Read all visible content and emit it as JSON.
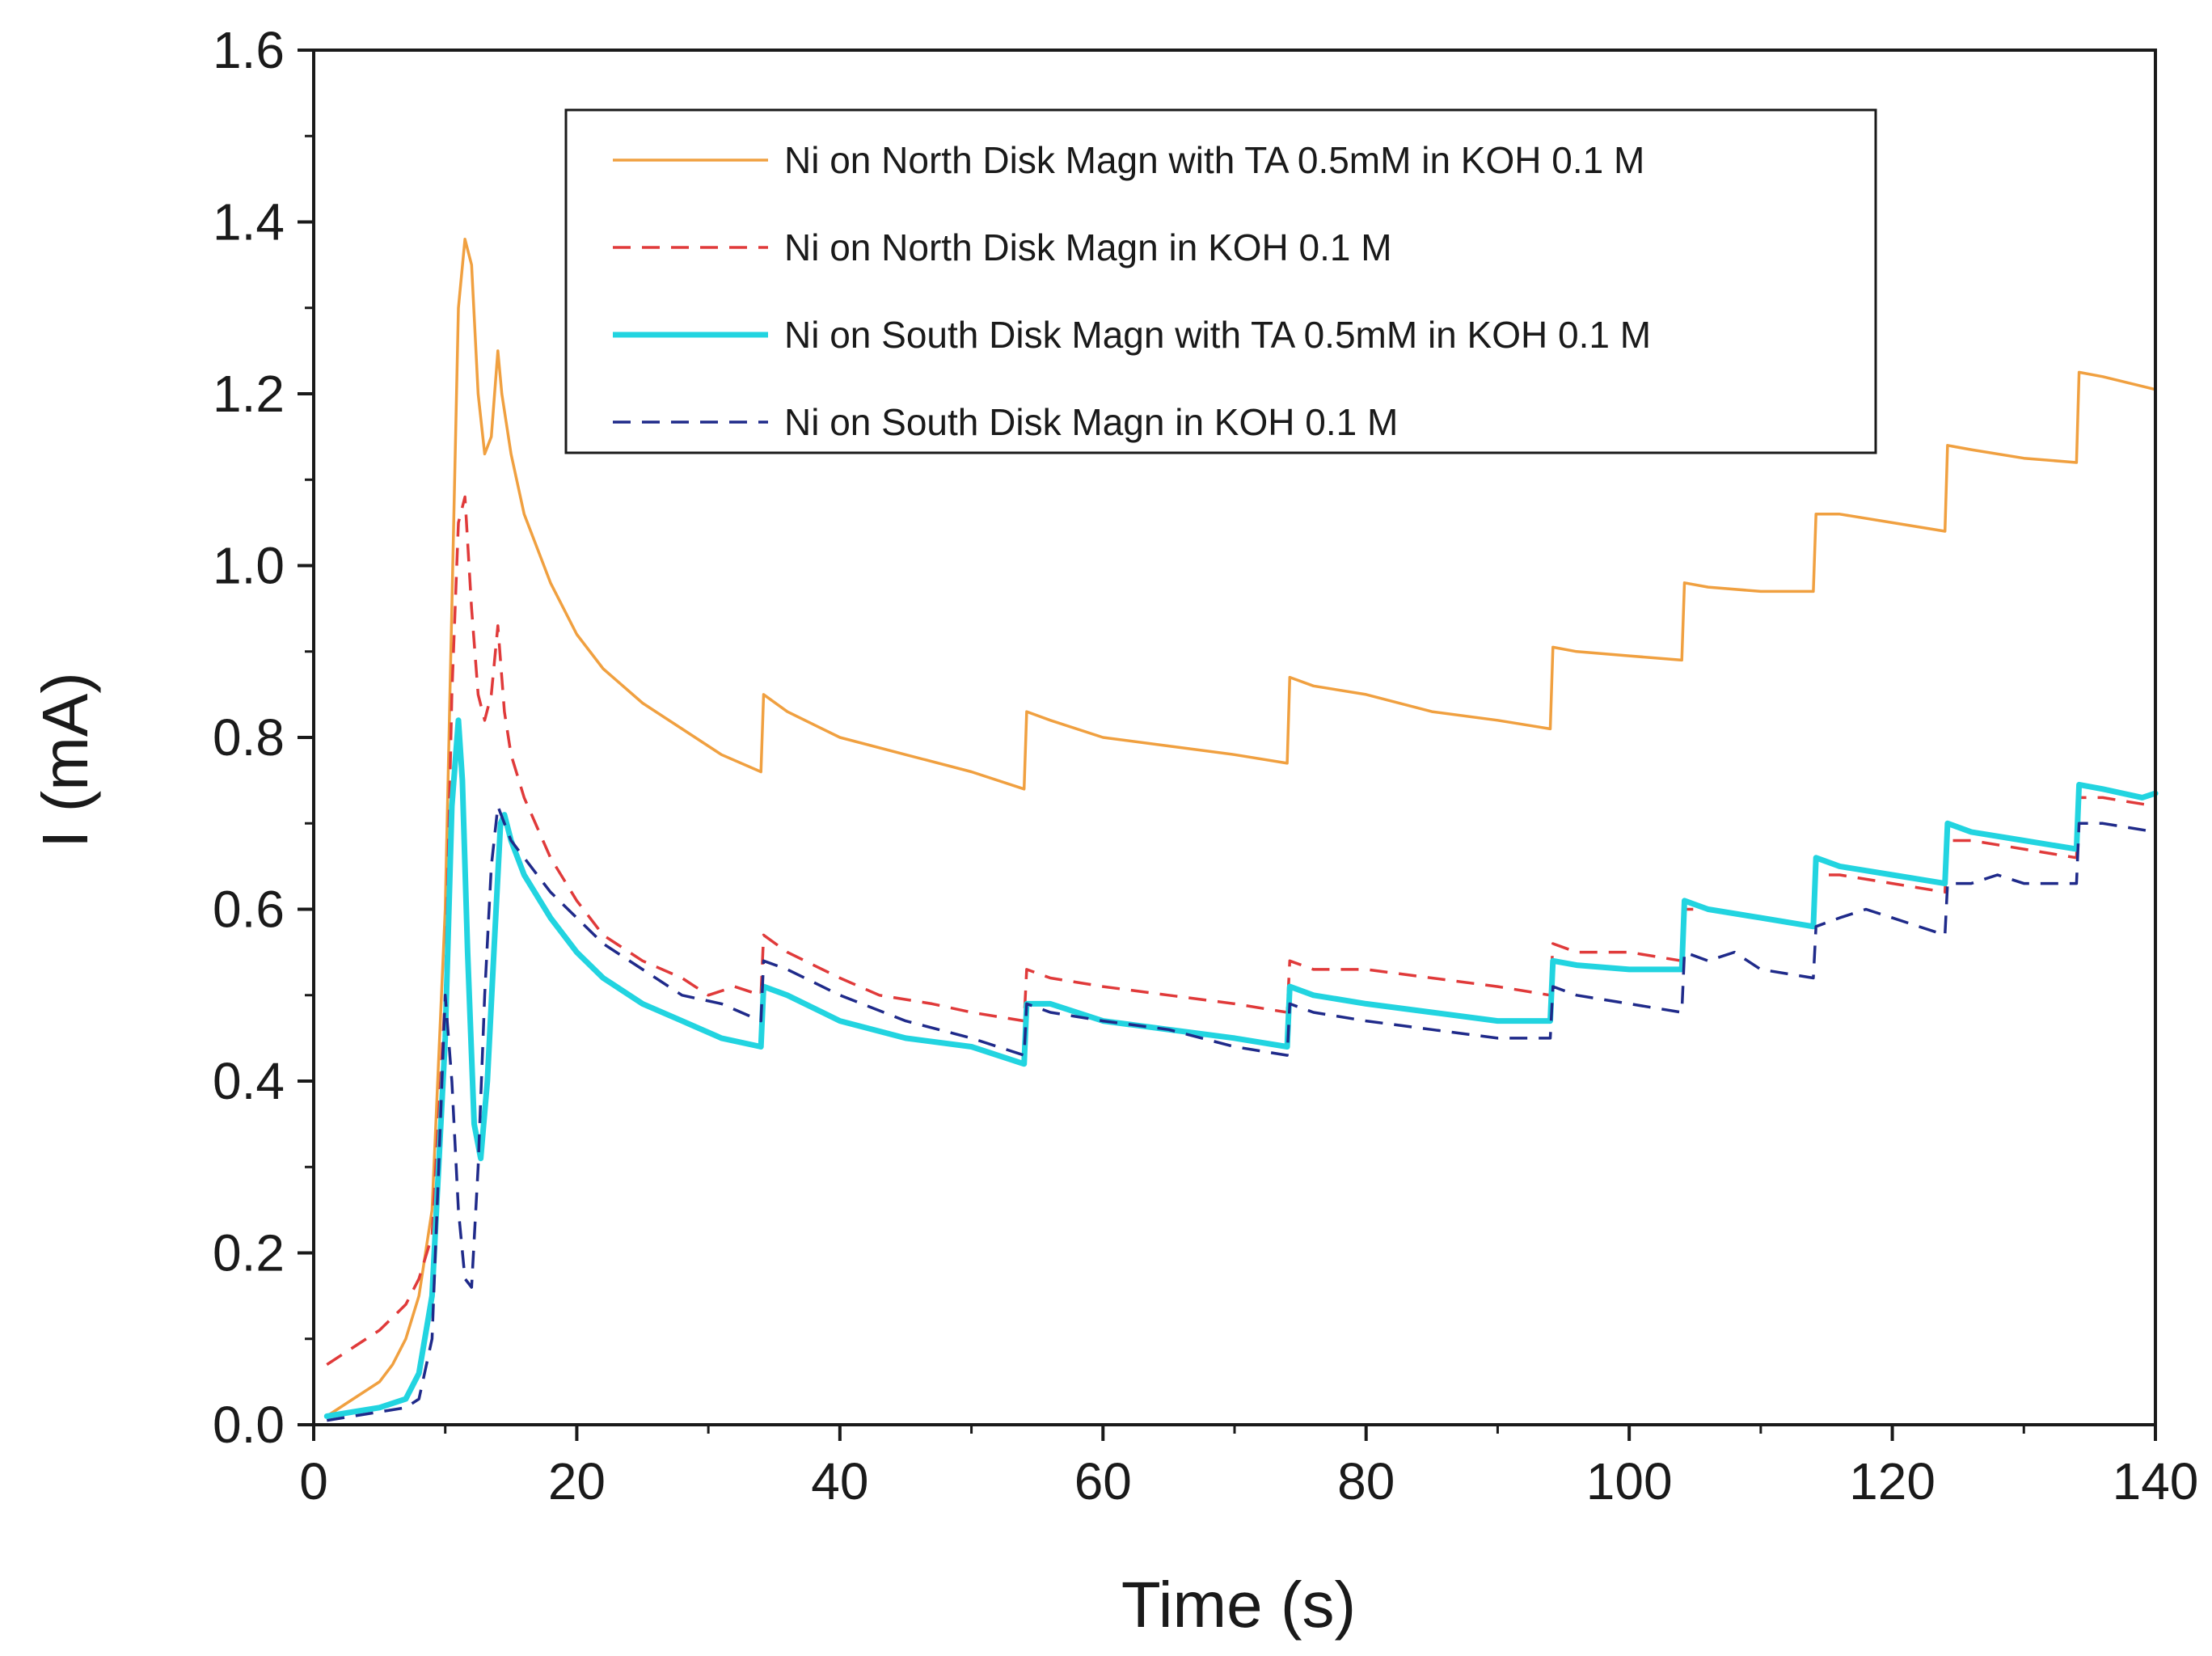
{
  "chart_data": {
    "type": "line",
    "title": "",
    "xlabel": "Time (s)",
    "ylabel": "I (mA)",
    "xlim": [
      0,
      140
    ],
    "ylim": [
      0.0,
      1.6
    ],
    "grid": false,
    "legend_position": "top-right",
    "x_ticks": [
      {
        "value": 0,
        "label": "0"
      },
      {
        "value": 20,
        "label": "20"
      },
      {
        "value": 40,
        "label": "40"
      },
      {
        "value": 60,
        "label": "60"
      },
      {
        "value": 80,
        "label": "80"
      },
      {
        "value": 100,
        "label": "100"
      },
      {
        "value": 120,
        "label": "120"
      },
      {
        "value": 140,
        "label": "140"
      }
    ],
    "y_ticks": [
      {
        "value": 0.0,
        "label": "0.0"
      },
      {
        "value": 0.2,
        "label": "0.2"
      },
      {
        "value": 0.4,
        "label": "0.4"
      },
      {
        "value": 0.6,
        "label": "0.6"
      },
      {
        "value": 0.8,
        "label": "0.8"
      },
      {
        "value": 1.0,
        "label": "1.0"
      },
      {
        "value": 1.2,
        "label": "1.2"
      },
      {
        "value": 1.4,
        "label": "1.4"
      },
      {
        "value": 1.6,
        "label": "1.6"
      }
    ],
    "series": [
      {
        "name": "Ni on North Disk Magn with TA 0.5mM in KOH 0.1 M",
        "color": "#f0a040",
        "dash": "solid",
        "width": "thin",
        "x": [
          1,
          3,
          5,
          6,
          7,
          8,
          9,
          10,
          11,
          11.5,
          12,
          12.5,
          13,
          13.5,
          14,
          14.3,
          15,
          16,
          18,
          20,
          22,
          25,
          28,
          31,
          34,
          34.2,
          36,
          40,
          45,
          50,
          54,
          54.2,
          56,
          60,
          65,
          70,
          74,
          74.2,
          76,
          80,
          85,
          90,
          94,
          94.2,
          96,
          100,
          104,
          104.2,
          106,
          110,
          114,
          114.2,
          116,
          120,
          124,
          124.2,
          126,
          130,
          134,
          134.2,
          136,
          140
        ],
        "y": [
          0.01,
          0.03,
          0.05,
          0.07,
          0.1,
          0.15,
          0.25,
          0.6,
          1.3,
          1.38,
          1.35,
          1.2,
          1.13,
          1.15,
          1.25,
          1.2,
          1.13,
          1.06,
          0.98,
          0.92,
          0.88,
          0.84,
          0.81,
          0.78,
          0.76,
          0.85,
          0.83,
          0.8,
          0.78,
          0.76,
          0.74,
          0.83,
          0.82,
          0.8,
          0.79,
          0.78,
          0.77,
          0.87,
          0.86,
          0.85,
          0.83,
          0.82,
          0.81,
          0.905,
          0.9,
          0.895,
          0.89,
          0.98,
          0.975,
          0.97,
          0.97,
          1.06,
          1.06,
          1.05,
          1.04,
          1.14,
          1.135,
          1.125,
          1.12,
          1.225,
          1.22,
          1.205
        ]
      },
      {
        "name": "Ni on North Disk Magn in KOH 0.1 M",
        "color": "#e03a3a",
        "dash": "dashed",
        "width": "thin",
        "x": [
          1,
          3,
          5,
          7,
          8,
          9,
          10,
          10.5,
          11,
          11.5,
          12,
          12.5,
          13,
          13.5,
          14,
          14.5,
          15,
          16,
          18,
          20,
          22,
          25,
          28,
          30,
          32,
          34,
          34.2,
          36,
          40,
          43,
          47,
          50,
          54,
          54.2,
          56,
          60,
          65,
          70,
          74,
          74.2,
          76,
          80,
          85,
          90,
          94,
          94.2,
          96,
          100,
          104,
          104.2,
          106,
          110,
          114,
          114.2,
          116,
          120,
          124,
          124.2,
          126,
          130,
          134,
          134.2,
          136,
          140
        ],
        "y": [
          0.07,
          0.09,
          0.11,
          0.14,
          0.17,
          0.22,
          0.5,
          0.85,
          1.05,
          1.08,
          0.95,
          0.85,
          0.82,
          0.85,
          0.93,
          0.83,
          0.78,
          0.73,
          0.66,
          0.61,
          0.57,
          0.54,
          0.52,
          0.5,
          0.51,
          0.5,
          0.57,
          0.55,
          0.52,
          0.5,
          0.49,
          0.48,
          0.47,
          0.53,
          0.52,
          0.51,
          0.5,
          0.49,
          0.48,
          0.54,
          0.53,
          0.53,
          0.52,
          0.51,
          0.5,
          0.56,
          0.55,
          0.55,
          0.54,
          0.6,
          0.6,
          0.59,
          0.58,
          0.64,
          0.64,
          0.63,
          0.62,
          0.68,
          0.68,
          0.67,
          0.66,
          0.73,
          0.73,
          0.72
        ]
      },
      {
        "name": "Ni on South Disk Magn with TA 0.5mM in KOH 0.1 M",
        "color": "#22d4e0",
        "dash": "solid",
        "width": "thick",
        "x": [
          1,
          3,
          5,
          7,
          8,
          9,
          10,
          10.5,
          11,
          11.3,
          11.7,
          12.2,
          12.7,
          13.2,
          13.7,
          14.2,
          14.5,
          15,
          16,
          18,
          20,
          22,
          25,
          28,
          31,
          34,
          34.2,
          36,
          40,
          45,
          50,
          54,
          54.2,
          56,
          60,
          65,
          70,
          74,
          74.2,
          76,
          80,
          85,
          90,
          94,
          94.2,
          96,
          100,
          104,
          104.2,
          106,
          110,
          114,
          114.2,
          116,
          120,
          124,
          124.2,
          126,
          130,
          134,
          134.2,
          136,
          139,
          140
        ],
        "y": [
          0.01,
          0.015,
          0.02,
          0.03,
          0.06,
          0.15,
          0.45,
          0.72,
          0.82,
          0.75,
          0.55,
          0.35,
          0.31,
          0.4,
          0.55,
          0.7,
          0.71,
          0.68,
          0.64,
          0.59,
          0.55,
          0.52,
          0.49,
          0.47,
          0.45,
          0.44,
          0.51,
          0.5,
          0.47,
          0.45,
          0.44,
          0.42,
          0.49,
          0.49,
          0.47,
          0.46,
          0.45,
          0.44,
          0.51,
          0.5,
          0.49,
          0.48,
          0.47,
          0.47,
          0.54,
          0.535,
          0.53,
          0.53,
          0.61,
          0.6,
          0.59,
          0.58,
          0.66,
          0.65,
          0.64,
          0.63,
          0.7,
          0.69,
          0.68,
          0.67,
          0.745,
          0.74,
          0.73,
          0.735
        ]
      },
      {
        "name": "Ni on South Disk Magn in KOH 0.1 M",
        "color": "#1f2a8a",
        "dash": "dashed",
        "width": "thin",
        "x": [
          1,
          3,
          5,
          7,
          8,
          9,
          9.5,
          10,
          10.5,
          11,
          11.5,
          12,
          12.5,
          13,
          13.5,
          14,
          14.5,
          15,
          16,
          18,
          20,
          22,
          25,
          28,
          31,
          34,
          34.2,
          36,
          40,
          45,
          50,
          54,
          54.2,
          56,
          60,
          65,
          70,
          74,
          74.2,
          76,
          80,
          85,
          90,
          94,
          94.2,
          96,
          100,
          104,
          104.2,
          106,
          108,
          110,
          114,
          114.2,
          116,
          118,
          120,
          124,
          124.2,
          126,
          128,
          130,
          134,
          134.2,
          136,
          140
        ],
        "y": [
          0.005,
          0.01,
          0.015,
          0.02,
          0.03,
          0.1,
          0.3,
          0.5,
          0.4,
          0.25,
          0.17,
          0.16,
          0.3,
          0.5,
          0.65,
          0.72,
          0.7,
          0.68,
          0.66,
          0.62,
          0.59,
          0.56,
          0.53,
          0.5,
          0.49,
          0.47,
          0.54,
          0.53,
          0.5,
          0.47,
          0.45,
          0.43,
          0.49,
          0.48,
          0.47,
          0.46,
          0.44,
          0.43,
          0.49,
          0.48,
          0.47,
          0.46,
          0.45,
          0.45,
          0.51,
          0.5,
          0.49,
          0.48,
          0.55,
          0.54,
          0.55,
          0.53,
          0.52,
          0.58,
          0.59,
          0.6,
          0.59,
          0.57,
          0.63,
          0.63,
          0.64,
          0.63,
          0.63,
          0.7,
          0.7,
          0.69
        ]
      }
    ]
  }
}
